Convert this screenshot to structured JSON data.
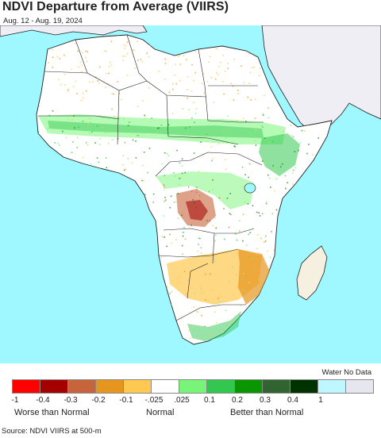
{
  "title": "NDVI Departure from Average (VIIRS)",
  "subtitle": "Aug. 12 - Aug. 19, 2024",
  "source": "Source: NDVI VIIRS at 500-m",
  "colors": {
    "ocean": "#9ff8ff",
    "land_nodata": "#efeef4",
    "normal": "#ffffff",
    "border": "#111111"
  },
  "legend": {
    "water_label": "Water No Data",
    "swatches": [
      {
        "color": "#ff0000"
      },
      {
        "color": "#a40000"
      },
      {
        "color": "#c8643c"
      },
      {
        "color": "#e6961e"
      },
      {
        "color": "#ffc850"
      },
      {
        "color": "#ffffff"
      },
      {
        "color": "#78f578"
      },
      {
        "color": "#32c850"
      },
      {
        "color": "#0a9600"
      },
      {
        "color": "#326432"
      },
      {
        "color": "#003200"
      },
      {
        "color": "#bef7ff"
      },
      {
        "color": "#e6e6ee"
      }
    ],
    "ticks": [
      "-1",
      "-0.4",
      "-0.3",
      "-0.2",
      "-0.1",
      "-.025",
      ".025",
      "0.1",
      "0.2",
      "0.3",
      "0.4",
      "1"
    ],
    "categories": [
      "Worse than Normal",
      "Normal",
      "Better than Normal"
    ]
  }
}
